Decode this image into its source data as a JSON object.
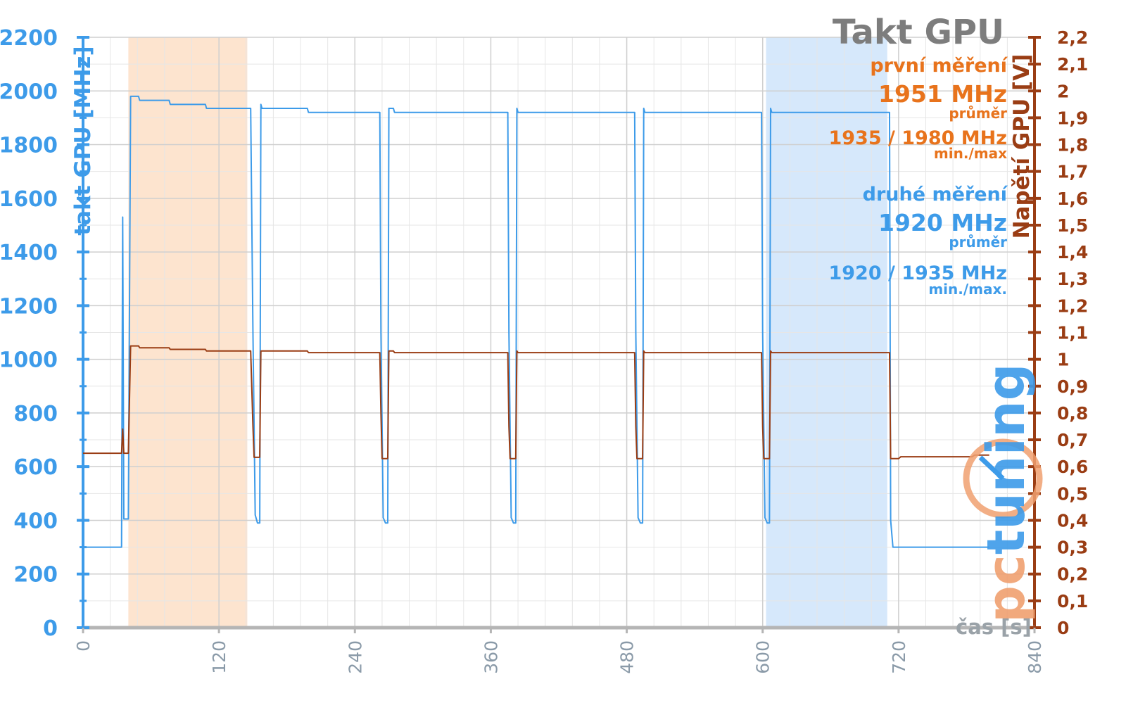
{
  "chart_data": {
    "type": "line",
    "title": "Takt GPU",
    "xlabel": "čas [s]",
    "ylabel_left": "takt GPU [MHz]",
    "ylabel_right": "Napětí GPU [V]",
    "xlim": [
      0,
      840
    ],
    "xticks": [
      "0",
      "120",
      "240",
      "360",
      "480",
      "600",
      "720",
      "840"
    ],
    "ylim_left": [
      0,
      2200
    ],
    "yticks_left": [
      "0",
      "200",
      "400",
      "600",
      "800",
      "1000",
      "1200",
      "1400",
      "1600",
      "1800",
      "2000",
      "2200"
    ],
    "ylim_right": [
      0,
      2.2
    ],
    "yticks_right": [
      "0",
      "0,1",
      "0,2",
      "0,3",
      "0,4",
      "0,5",
      "0,6",
      "0,7",
      "0,8",
      "0,9",
      "1",
      "1,1",
      "1,2",
      "1,3",
      "1,4",
      "1,5",
      "1,6",
      "1,7",
      "1,8",
      "1,9",
      "2",
      "2,1",
      "2,2"
    ],
    "grid": true,
    "highlight_bands": [
      {
        "x": [
          40,
          145
        ],
        "color": "#fde4cf"
      },
      {
        "x": [
          603,
          710
        ],
        "color": "#d6e8fb"
      }
    ],
    "series": [
      {
        "axis": "left",
        "color": "#3d9be9",
        "points": [
          [
            0,
            300
          ],
          [
            34,
            300
          ],
          [
            35,
            1530
          ],
          [
            36,
            405
          ],
          [
            40,
            405
          ],
          [
            42,
            1980
          ],
          [
            49,
            1980
          ],
          [
            50,
            1965
          ],
          [
            76,
            1965
          ],
          [
            77,
            1950
          ],
          [
            108,
            1950
          ],
          [
            109,
            1935
          ],
          [
            148,
            1935
          ],
          [
            150,
            1100
          ],
          [
            152,
            420
          ],
          [
            154,
            390
          ],
          [
            156,
            390
          ],
          [
            157,
            1950
          ],
          [
            158,
            1935
          ],
          [
            198,
            1935
          ],
          [
            199,
            1920
          ],
          [
            262,
            1920
          ],
          [
            263,
            1100
          ],
          [
            265,
            410
          ],
          [
            267,
            390
          ],
          [
            269,
            390
          ],
          [
            270,
            1935
          ],
          [
            274,
            1935
          ],
          [
            275,
            1920
          ],
          [
            375,
            1920
          ],
          [
            376,
            1100
          ],
          [
            378,
            410
          ],
          [
            380,
            390
          ],
          [
            382,
            390
          ],
          [
            383,
            1935
          ],
          [
            384,
            1920
          ],
          [
            487,
            1920
          ],
          [
            488,
            1100
          ],
          [
            490,
            410
          ],
          [
            492,
            390
          ],
          [
            494,
            390
          ],
          [
            495,
            1935
          ],
          [
            496,
            1920
          ],
          [
            599,
            1920
          ],
          [
            600,
            1100
          ],
          [
            602,
            410
          ],
          [
            604,
            390
          ],
          [
            606,
            390
          ],
          [
            607,
            1935
          ],
          [
            608,
            1920
          ],
          [
            712,
            1920
          ],
          [
            713,
            400
          ],
          [
            715,
            300
          ],
          [
            800,
            300
          ]
        ]
      },
      {
        "axis": "right",
        "color": "#9a3d14",
        "points": [
          [
            0,
            0.65
          ],
          [
            34,
            0.65
          ],
          [
            35,
            0.74
          ],
          [
            36,
            0.65
          ],
          [
            40,
            0.65
          ],
          [
            42,
            1.05
          ],
          [
            49,
            1.05
          ],
          [
            50,
            1.043
          ],
          [
            76,
            1.043
          ],
          [
            77,
            1.037
          ],
          [
            108,
            1.037
          ],
          [
            109,
            1.031
          ],
          [
            148,
            1.031
          ],
          [
            150,
            0.75
          ],
          [
            151,
            0.635
          ],
          [
            156,
            0.635
          ],
          [
            157,
            1.031
          ],
          [
            198,
            1.031
          ],
          [
            199,
            1.025
          ],
          [
            262,
            1.025
          ],
          [
            263,
            0.8
          ],
          [
            264,
            0.63
          ],
          [
            269,
            0.63
          ],
          [
            270,
            1.031
          ],
          [
            274,
            1.031
          ],
          [
            275,
            1.025
          ],
          [
            375,
            1.025
          ],
          [
            376,
            0.75
          ],
          [
            377,
            0.63
          ],
          [
            382,
            0.63
          ],
          [
            383,
            1.031
          ],
          [
            384,
            1.025
          ],
          [
            487,
            1.025
          ],
          [
            488,
            0.75
          ],
          [
            489,
            0.63
          ],
          [
            494,
            0.63
          ],
          [
            495,
            1.031
          ],
          [
            496,
            1.025
          ],
          [
            599,
            1.025
          ],
          [
            600,
            0.75
          ],
          [
            601,
            0.63
          ],
          [
            606,
            0.63
          ],
          [
            607,
            1.031
          ],
          [
            608,
            1.025
          ],
          [
            712,
            1.025
          ],
          [
            713,
            0.63
          ],
          [
            720,
            0.63
          ],
          [
            722,
            0.637
          ],
          [
            785,
            0.637
          ],
          [
            787,
            0.643
          ],
          [
            800,
            0.643
          ]
        ]
      }
    ],
    "annotations": {
      "first_label": "první měření",
      "first_avg": "1951 MHz",
      "first_avg_note": "průměr",
      "first_minmax": "1935 / 1980 MHz",
      "first_minmax_note": "min./max",
      "second_label": "druhé měření",
      "second_avg": "1920 MHz",
      "second_avg_note": "průměr",
      "second_minmax": "1920 / 1935 MHz",
      "second_minmax_note": "min./max."
    }
  },
  "logo": {
    "text": "pctuning",
    "color_pc": "#f0a070",
    "color_rest": "#3d9be9"
  }
}
